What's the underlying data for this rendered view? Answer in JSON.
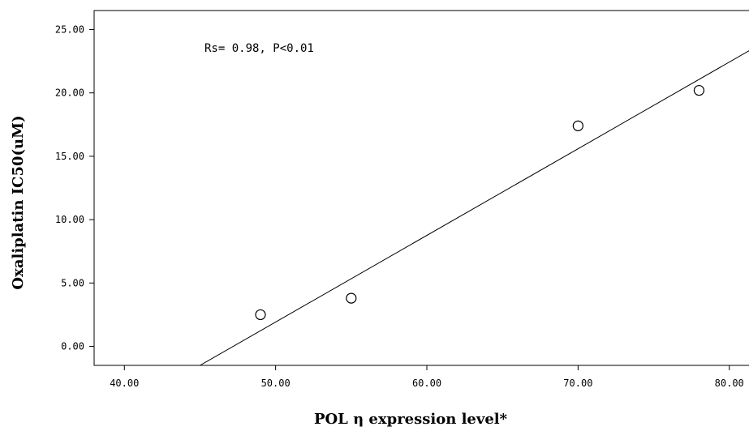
{
  "chart_data": {
    "type": "scatter",
    "title": "",
    "xlabel": "POL η expression level*",
    "ylabel": "Oxaliplatin IC50(uM)",
    "xlim": [
      38.0,
      82.0
    ],
    "ylim": [
      -1.5,
      26.5
    ],
    "x_ticks": [
      40,
      50,
      60,
      70,
      80
    ],
    "x_tick_labels": [
      "40.00",
      "50.00",
      "60.00",
      "70.00",
      "80.00"
    ],
    "y_ticks": [
      0,
      5,
      10,
      15,
      20,
      25
    ],
    "y_tick_labels": [
      "0.00",
      "5.00",
      "10.00",
      "15.00",
      "20.00",
      "25.00"
    ],
    "annotation": "Rs= 0.98, P<0.01",
    "grid": false,
    "legend": "none",
    "points": [
      {
        "x": 49.0,
        "y": 2.5
      },
      {
        "x": 55.0,
        "y": 3.8
      },
      {
        "x": 70.0,
        "y": 17.4
      },
      {
        "x": 78.0,
        "y": 20.2
      }
    ],
    "fit_line": {
      "start": [
        45.0,
        -1.5
      ],
      "end": [
        82.0,
        23.8
      ]
    },
    "colors": {
      "marker": "#000000",
      "line": "#000000",
      "background": "#ffffff"
    }
  }
}
